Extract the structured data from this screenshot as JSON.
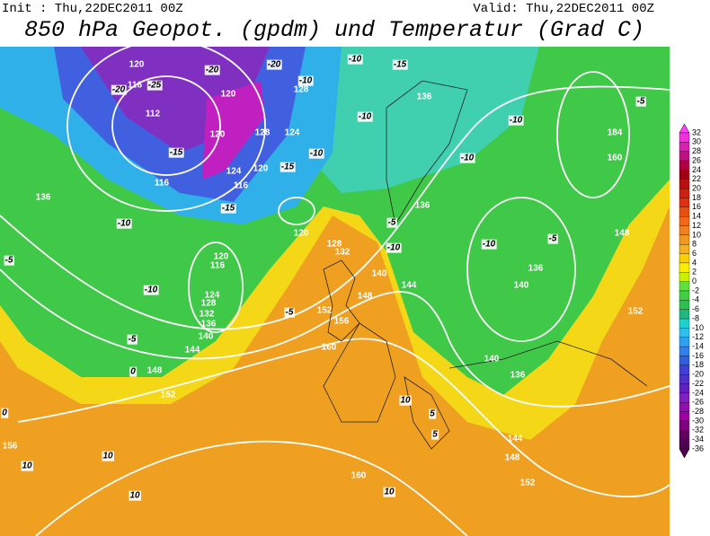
{
  "header": {
    "init": "Init : Thu,22DEC2011 00Z",
    "valid": "Valid: Thu,22DEC2011 00Z"
  },
  "title": "850 hPa Geopot. (gpdm) und Temperatur (Grad C)",
  "colorbar": {
    "levels": [
      32,
      30,
      28,
      26,
      24,
      22,
      20,
      18,
      16,
      14,
      12,
      10,
      8,
      6,
      4,
      2,
      0,
      -2,
      -4,
      -6,
      -8,
      -10,
      -12,
      -14,
      -16,
      -18,
      -20,
      -22,
      -24,
      -26,
      -28,
      -30,
      -32,
      -34,
      -36
    ],
    "colors": [
      "#ff40ff",
      "#f030e0",
      "#d820b0",
      "#c01080",
      "#b00040",
      "#a00010",
      "#b81010",
      "#d02010",
      "#e03010",
      "#e85010",
      "#f06818",
      "#f08020",
      "#f09820",
      "#f4b020",
      "#f8d000",
      "#f8f000",
      "#c8f000",
      "#60e040",
      "#40d040",
      "#30c050",
      "#20b880",
      "#20d0d0",
      "#30c0f0",
      "#30a0f0",
      "#3080f0",
      "#3060e0",
      "#4040d8",
      "#5030c8",
      "#6020c0",
      "#8020c0",
      "#9010b0",
      "#a000a0",
      "#800080",
      "#600060",
      "#500050"
    ]
  },
  "map": {
    "contour_labels": [
      "120",
      "-20",
      "-20",
      "-10",
      "-15",
      "-10",
      "116",
      "-25",
      "-20",
      "120",
      "128",
      "136",
      "-10",
      "112",
      "120",
      "128",
      "124",
      "-10",
      "-10",
      "184",
      "-15",
      "120",
      "-15",
      "-10",
      "160",
      "-5",
      "116",
      "116",
      "124",
      "-15",
      "136",
      "-10",
      "120",
      "-5",
      "136",
      "-10",
      "-5",
      "148",
      "128",
      "132",
      "-10",
      "120",
      "116",
      "140",
      "144",
      "136",
      "140",
      "-10",
      "124",
      "128",
      "132",
      "136",
      "140",
      "148",
      "152",
      "-5",
      "156",
      "-5",
      "144",
      "160",
      "148",
      "152",
      "0",
      "152",
      "140",
      "136",
      "144",
      "148",
      "152",
      "160",
      "156",
      "10",
      "10",
      "10",
      "10",
      "5",
      "5",
      "10",
      "-5",
      "0"
    ]
  }
}
